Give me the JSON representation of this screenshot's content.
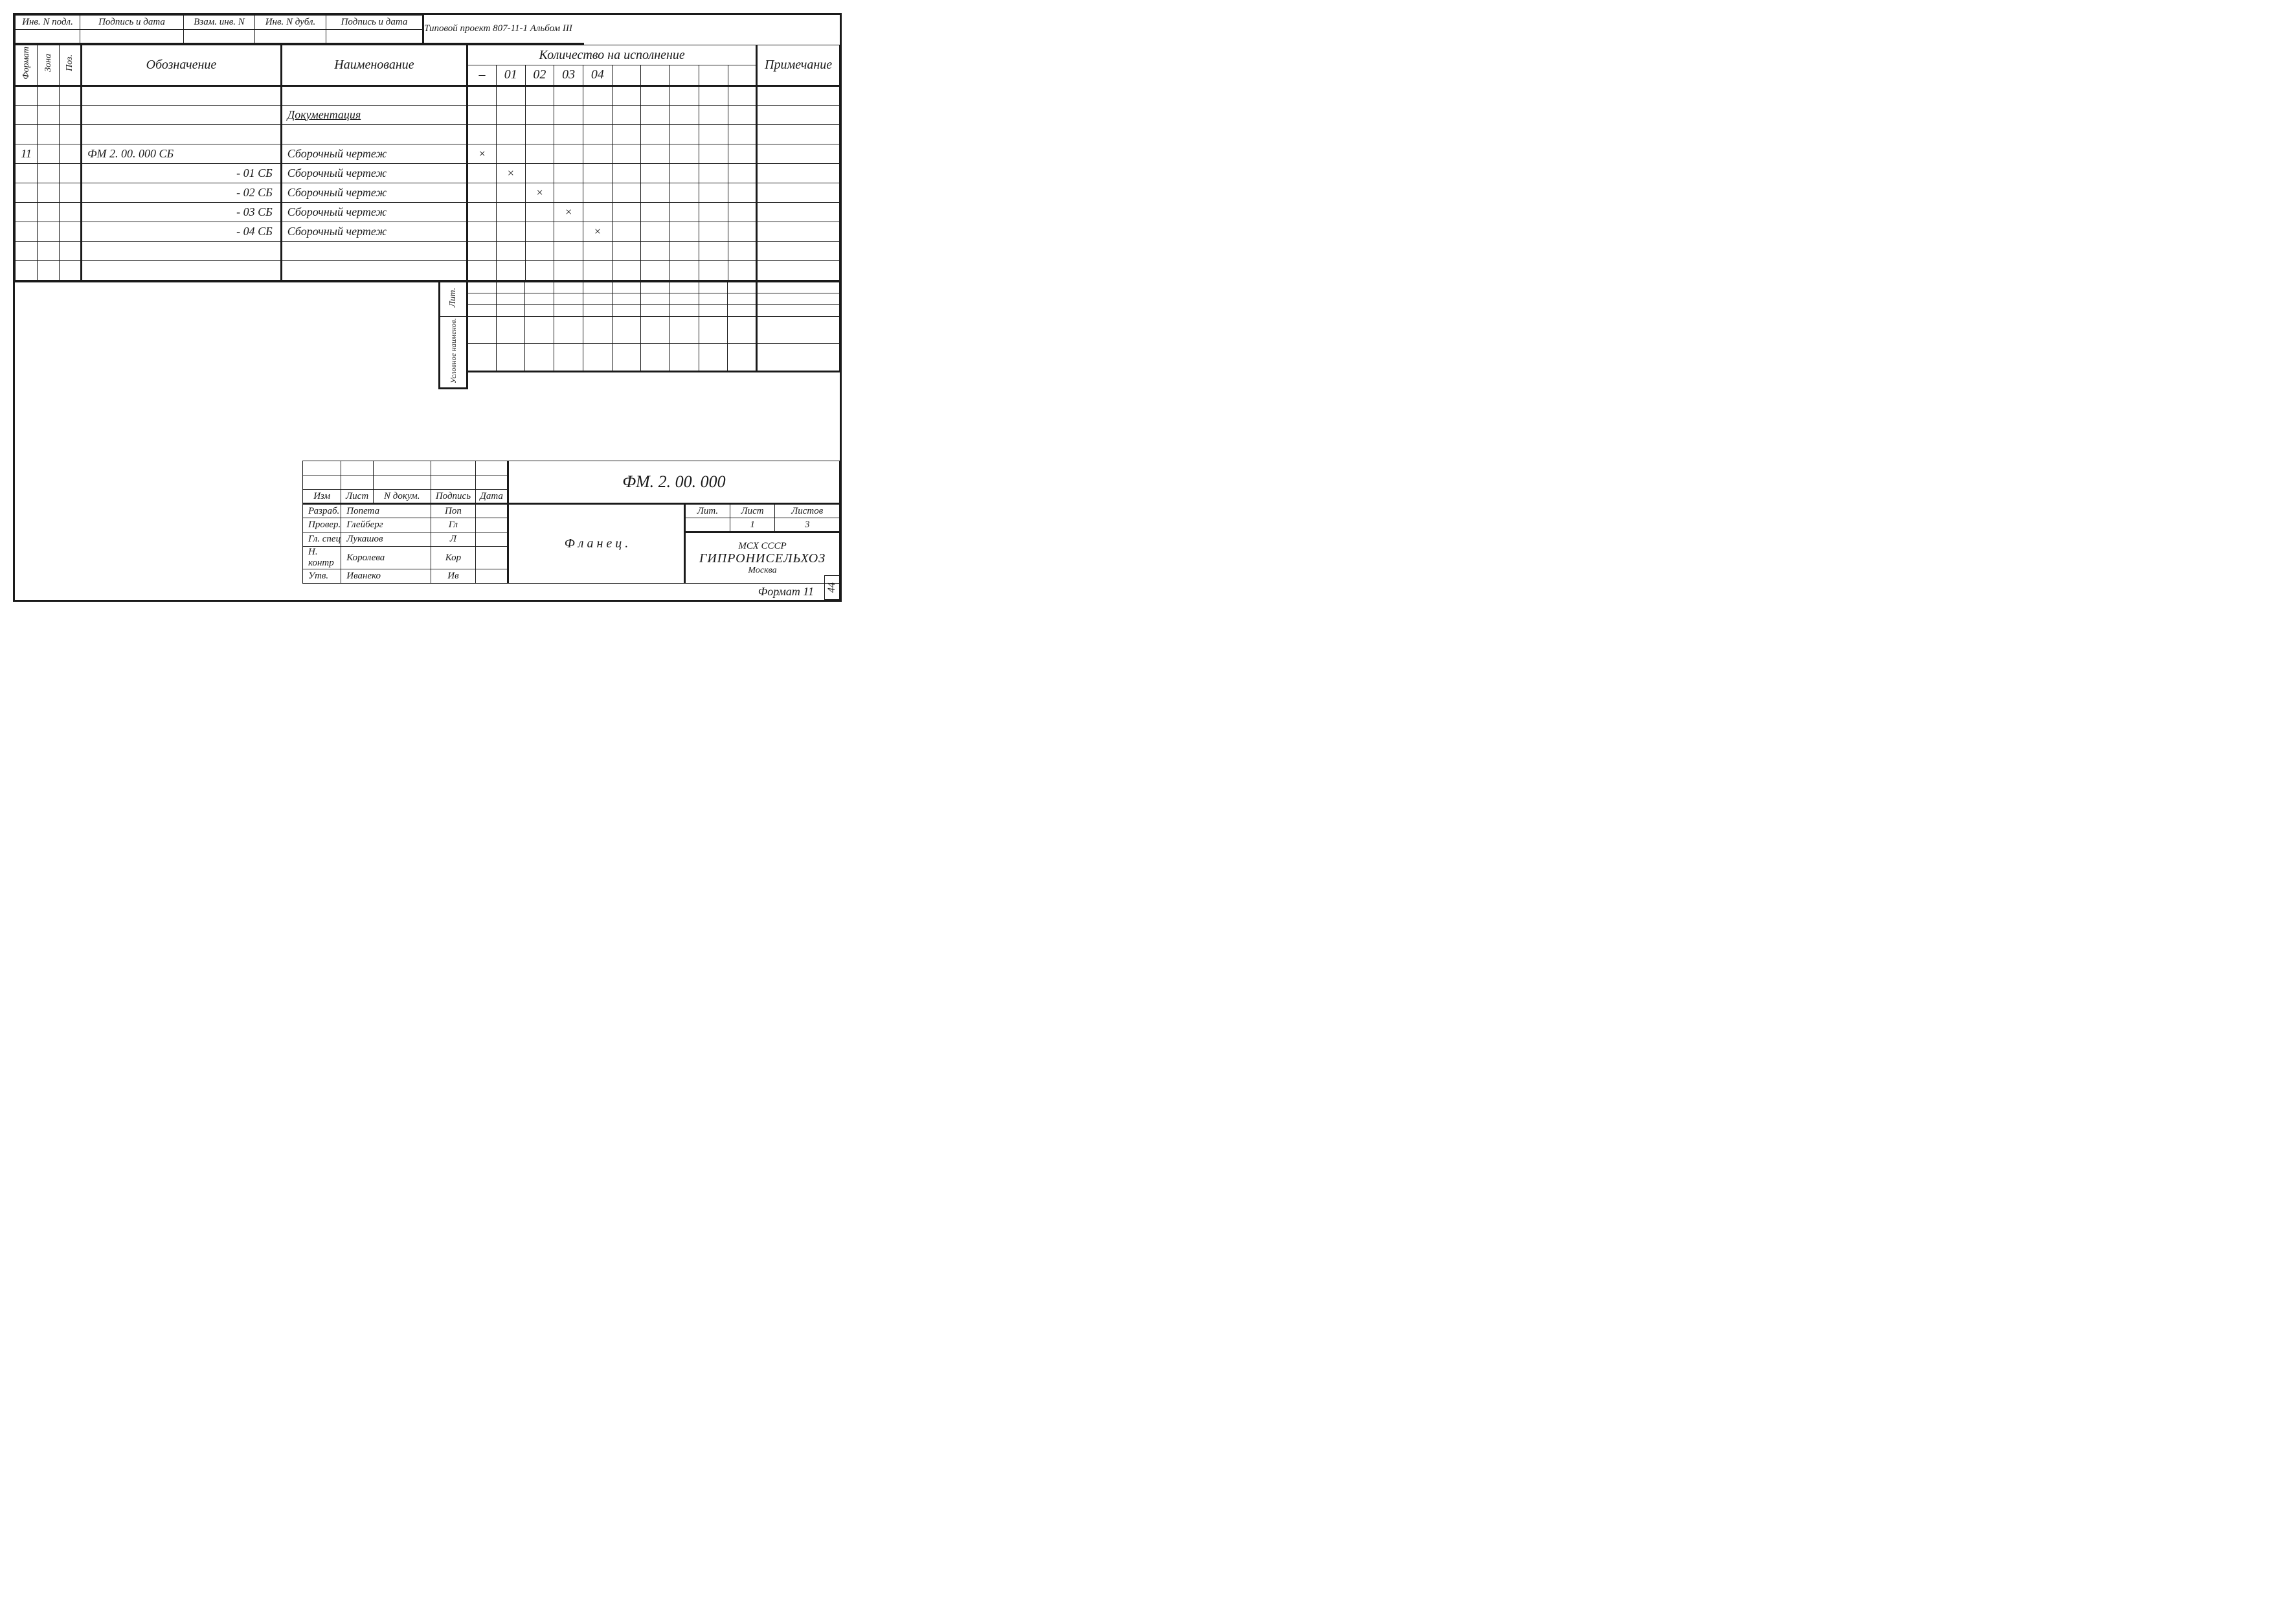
{
  "topstrip": {
    "cells": [
      "Инв. N подл.",
      "Подпись и дата",
      "Взам. инв. N",
      "Инв. N дубл.",
      "Подпись и дата"
    ]
  },
  "project_line": "Типовой проект 807-11-1  Альбом  III",
  "spec": {
    "vhdr": {
      "format": "Формат",
      "zona": "Зона",
      "poz": "Поз."
    },
    "hdr": {
      "oboz": "Обозначение",
      "naim": "Наименование",
      "kol": "Количество  на  исполнение",
      "prim": "Примечание"
    },
    "kol_cols": [
      "–",
      "01",
      "02",
      "03",
      "04",
      "",
      "",
      "",
      "",
      ""
    ],
    "rows": [
      {
        "f": "",
        "z": "",
        "p": "",
        "ob": "",
        "nm": "",
        "k": [
          "",
          "",
          "",
          "",
          "",
          "",
          "",
          "",
          "",
          ""
        ],
        "pr": ""
      },
      {
        "f": "",
        "z": "",
        "p": "",
        "ob": "",
        "nm": "Документация",
        "underline": true,
        "k": [
          "",
          "",
          "",
          "",
          "",
          "",
          "",
          "",
          "",
          ""
        ],
        "pr": ""
      },
      {
        "f": "",
        "z": "",
        "p": "",
        "ob": "",
        "nm": "",
        "k": [
          "",
          "",
          "",
          "",
          "",
          "",
          "",
          "",
          "",
          ""
        ],
        "pr": ""
      },
      {
        "f": "11",
        "z": "",
        "p": "",
        "ob": "ФМ 2. 00. 000 СБ",
        "nm": "Сборочный чертеж",
        "k": [
          "×",
          "",
          "",
          "",
          "",
          "",
          "",
          "",
          "",
          ""
        ],
        "pr": ""
      },
      {
        "f": "",
        "z": "",
        "p": "",
        "ob": "- 01 СБ",
        "ob_align": "right",
        "nm": "Сборочный чертеж",
        "k": [
          "",
          "×",
          "",
          "",
          "",
          "",
          "",
          "",
          "",
          ""
        ],
        "pr": ""
      },
      {
        "f": "",
        "z": "",
        "p": "",
        "ob": "- 02 СБ",
        "ob_align": "right",
        "nm": "Сборочный чертеж",
        "k": [
          "",
          "",
          "×",
          "",
          "",
          "",
          "",
          "",
          "",
          ""
        ],
        "pr": ""
      },
      {
        "f": "",
        "z": "",
        "p": "",
        "ob": "- 03 СБ",
        "ob_align": "right",
        "nm": "Сборочный чертеж",
        "k": [
          "",
          "",
          "",
          "×",
          "",
          "",
          "",
          "",
          "",
          ""
        ],
        "pr": ""
      },
      {
        "f": "",
        "z": "",
        "p": "",
        "ob": "- 04 СБ",
        "ob_align": "right",
        "nm": "Сборочный чертеж",
        "k": [
          "",
          "",
          "",
          "",
          "×",
          "",
          "",
          "",
          "",
          ""
        ],
        "pr": ""
      },
      {
        "f": "",
        "z": "",
        "p": "",
        "ob": "",
        "nm": "",
        "k": [
          "",
          "",
          "",
          "",
          "",
          "",
          "",
          "",
          "",
          ""
        ],
        "pr": ""
      },
      {
        "f": "",
        "z": "",
        "p": "",
        "ob": "",
        "nm": "",
        "k": [
          "",
          "",
          "",
          "",
          "",
          "",
          "",
          "",
          "",
          ""
        ],
        "pr": ""
      }
    ]
  },
  "mid": {
    "lit": "Лит.",
    "usl": "Условное наименов."
  },
  "tblock": {
    "small_hdr": [
      "Изм",
      "Лист",
      "N докум.",
      "Подпись",
      "Дата"
    ],
    "roles": [
      {
        "role": "Разраб.",
        "name": "Попета",
        "sig": "Поп"
      },
      {
        "role": "Провер.",
        "name": "Глейберг",
        "sig": "Гл"
      },
      {
        "role": "Гл. спец",
        "name": "Лукашов",
        "sig": "Л"
      },
      {
        "role": "Н. контр",
        "name": "Королева",
        "sig": "Кор"
      },
      {
        "role": "Утв.",
        "name": "Иванеко",
        "sig": "Ив"
      }
    ],
    "code": "ФМ. 2. 00. 000",
    "title": "Ф л а н е ц .",
    "lit_hdr": "Лит.",
    "list_hdr": "Лист",
    "listov_hdr": "Листов",
    "list_val": "1",
    "listov_val": "3",
    "org1": "МСХ  СССР",
    "org2": "ГИПРОНИСЕЛЬХОЗ",
    "org3": "Москва"
  },
  "footer": {
    "format": "Формат 11",
    "page": "44"
  },
  "layout": {
    "col_w": {
      "format": 32,
      "zona": 32,
      "poz": 32,
      "oboz": 290,
      "naim": 270,
      "kol_each": 42,
      "prim": 120
    }
  }
}
